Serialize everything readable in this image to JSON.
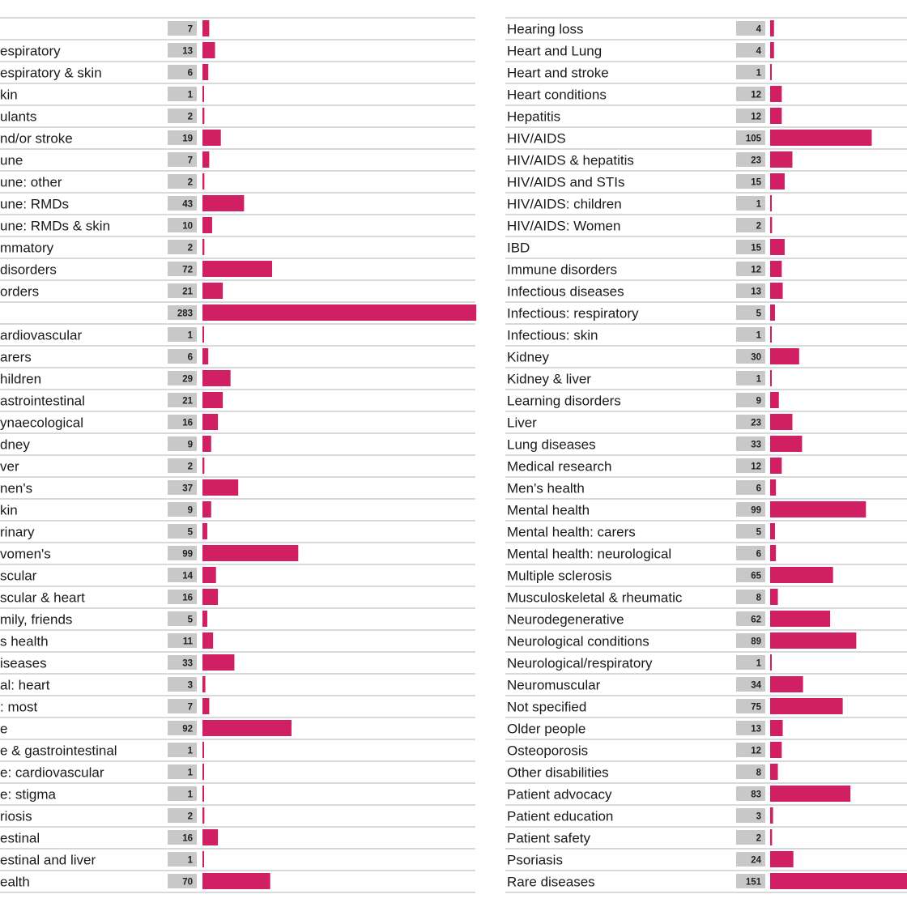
{
  "chart_data": {
    "type": "bar",
    "orientation": "horizontal",
    "colors": {
      "bar": "#d11f63",
      "value_box": "#c8c8c8",
      "row_rule": "#b3b3b3"
    },
    "panels": [
      {
        "categories": [
          "",
          "espiratory",
          "espiratory & skin",
          "kin",
          "ulants",
          "nd/or stroke",
          "une",
          "une: other",
          "une: RMDs",
          "une: RMDs & skin",
          "mmatory",
          "disorders",
          "orders",
          "",
          "ardiovascular",
          "arers",
          "hildren",
          "astrointestinal",
          "ynaecological",
          "dney",
          "ver",
          "nen's",
          "kin",
          "rinary",
          "vomen's",
          "scular",
          "scular & heart",
          "mily, friends",
          "s health",
          "iseases",
          "al: heart",
          ": most",
          "e",
          "e & gastrointestinal",
          "e: cardiovascular",
          "e: stigma",
          "riosis",
          "estinal",
          "estinal and liver",
          "ealth"
        ],
        "values": [
          7,
          13,
          6,
          1,
          2,
          19,
          7,
          2,
          43,
          10,
          2,
          72,
          21,
          283,
          1,
          6,
          29,
          21,
          16,
          9,
          2,
          37,
          9,
          5,
          99,
          14,
          16,
          5,
          11,
          33,
          3,
          7,
          92,
          1,
          1,
          1,
          2,
          16,
          1,
          70
        ]
      },
      {
        "categories": [
          "Hearing loss",
          "Heart and Lung",
          "Heart and stroke",
          "Heart conditions",
          "Hepatitis",
          "HIV/AIDS",
          "HIV/AIDS & hepatitis",
          "HIV/AIDS and STIs",
          "HIV/AIDS: children",
          "HIV/AIDS: Women",
          "IBD",
          "Immune disorders",
          "Infectious diseases",
          "Infectious: respiratory",
          "Infectious: skin",
          "Kidney",
          "Kidney & liver",
          "Learning disorders",
          "Liver",
          "Lung diseases",
          "Medical research",
          "Men's health",
          "Mental health",
          "Mental health: carers",
          "Mental health: neurological",
          "Multiple sclerosis",
          "Musculoskeletal & rheumatic",
          "Neurodegenerative",
          "Neurological conditions",
          "Neurological/respiratory",
          "Neuromuscular",
          "Not specified",
          "Older people",
          "Osteoporosis",
          "Other disabilities",
          "Patient advocacy",
          "Patient education",
          "Patient safety",
          "Psoriasis",
          "Rare diseases"
        ],
        "values": [
          4,
          4,
          1,
          12,
          12,
          105,
          23,
          15,
          1,
          2,
          15,
          12,
          13,
          5,
          1,
          30,
          1,
          9,
          23,
          33,
          12,
          6,
          99,
          5,
          6,
          65,
          8,
          62,
          89,
          1,
          34,
          75,
          13,
          12,
          8,
          83,
          3,
          2,
          24,
          151
        ]
      }
    ]
  }
}
